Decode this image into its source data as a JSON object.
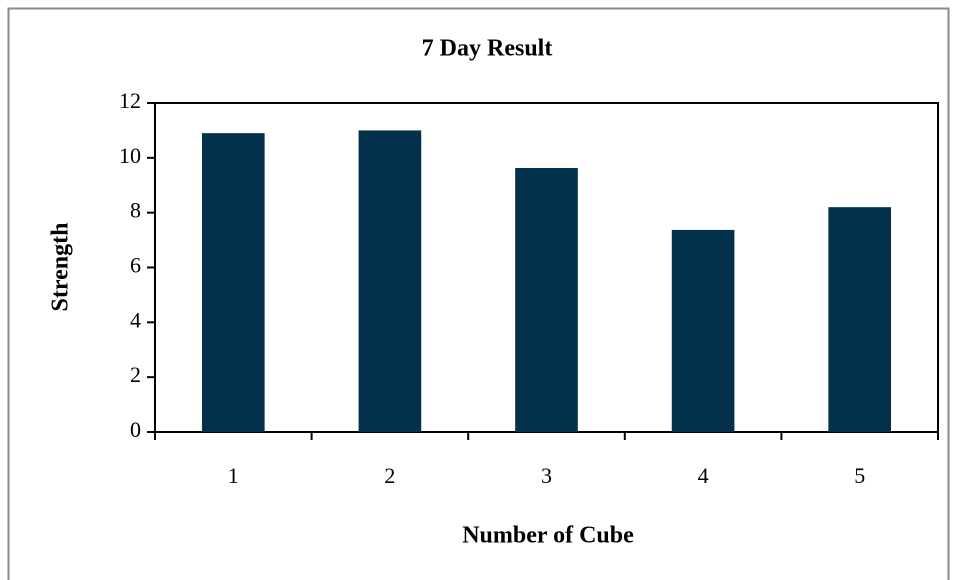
{
  "chart_data": {
    "type": "bar",
    "title": "7 Day Result",
    "x_label": "Number of Cube",
    "y_label": "Strength",
    "categories": [
      "1",
      "2",
      "3",
      "4",
      "5"
    ],
    "values": [
      10.9,
      11.0,
      9.63,
      7.37,
      8.2
    ],
    "color": "#03304a",
    "ylim": [
      0,
      12
    ],
    "yticks": [
      0,
      2,
      4,
      6,
      8,
      10,
      12
    ],
    "grid": false
  }
}
